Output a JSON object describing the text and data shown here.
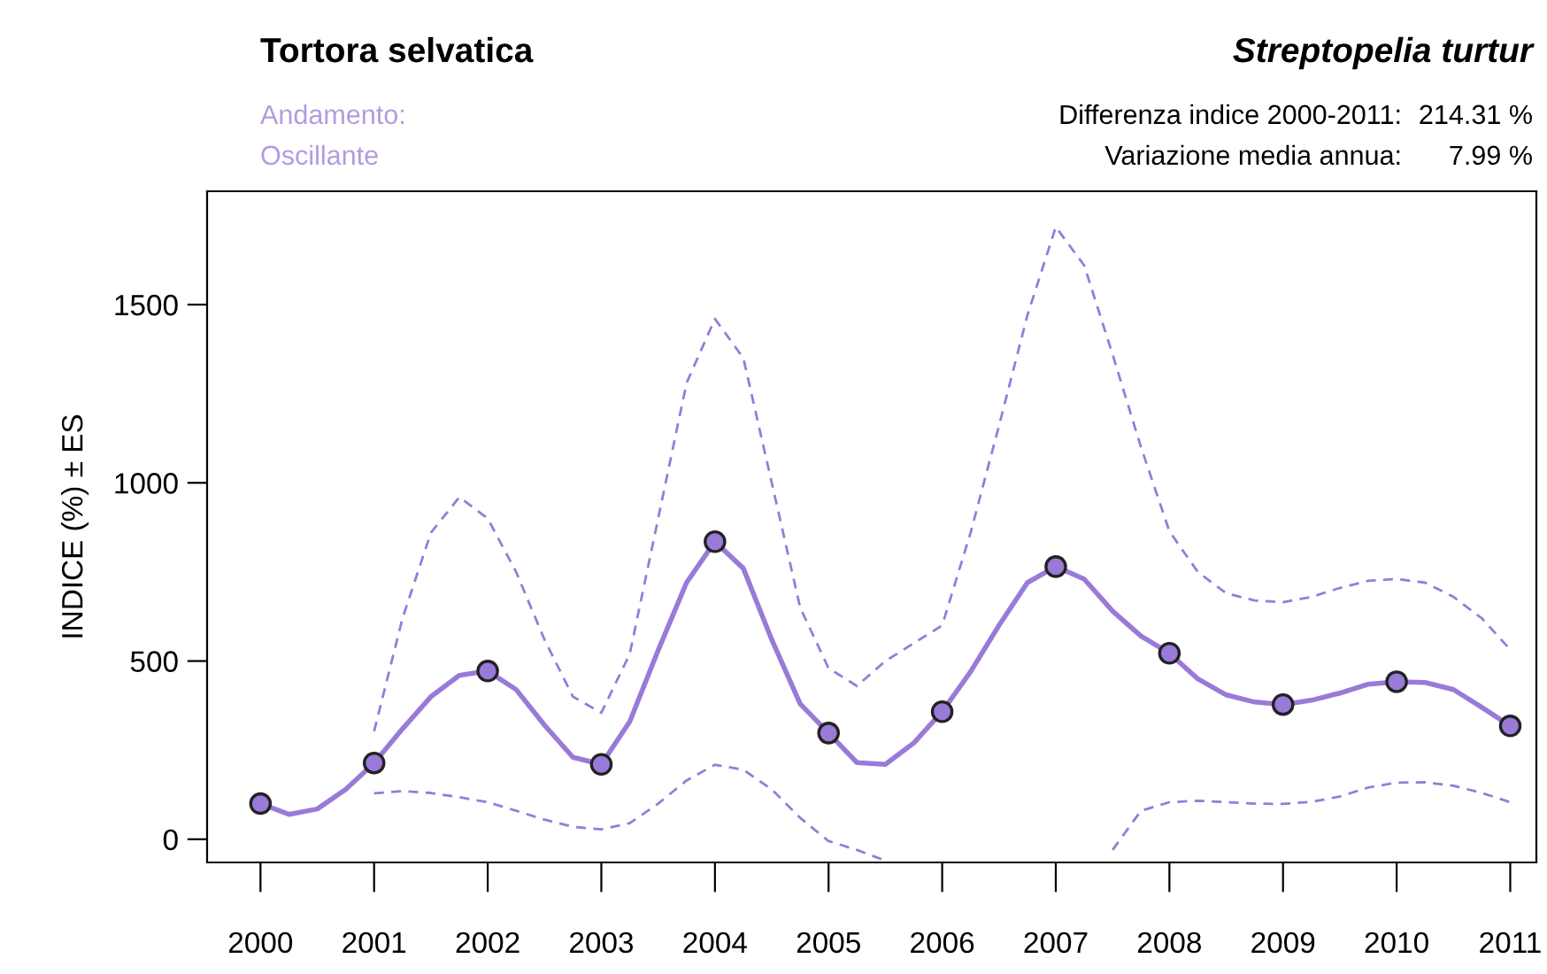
{
  "chart_data": {
    "type": "line",
    "title": "Tortora selvatica",
    "subtitle": "Streptopelia turtur",
    "ylabel": "INDICE (%) ± ES",
    "x": [
      2000,
      2001,
      2002,
      2003,
      2004,
      2005,
      2006,
      2007,
      2008,
      2009,
      2010,
      2011
    ],
    "series": [
      {
        "color": "#9a7ad8",
        "line_style": "solid",
        "x": [
          2000,
          2000.25,
          2000.5,
          2000.75,
          2001,
          2001.25,
          2001.5,
          2001.75,
          2002,
          2002.25,
          2002.5,
          2002.75,
          2003,
          2003.25,
          2003.5,
          2003.75,
          2004,
          2004.25,
          2004.5,
          2004.75,
          2005,
          2005.25,
          2005.5,
          2005.75,
          2006,
          2006.25,
          2006.5,
          2006.75,
          2007,
          2007.25,
          2007.5,
          2007.75,
          2008,
          2008.25,
          2008.5,
          2008.75,
          2009,
          2009.25,
          2009.5,
          2009.75,
          2010,
          2010.25,
          2010.5,
          2010.75,
          2011
        ],
        "values": [
          100,
          70,
          85,
          140,
          214,
          310,
          400,
          460,
          472,
          420,
          320,
          230,
          210,
          330,
          530,
          720,
          835,
          760,
          560,
          380,
          298,
          215,
          210,
          270,
          358,
          470,
          600,
          720,
          765,
          730,
          640,
          570,
          522,
          450,
          405,
          385,
          378,
          390,
          410,
          435,
          442,
          440,
          420,
          370,
          318
        ]
      },
      {
        "color": "#9a7ad8",
        "line_style": "dashed",
        "x": [
          2001,
          2001.25,
          2001.5,
          2001.75,
          2002,
          2002.25,
          2002.5,
          2002.75,
          2003,
          2003.25,
          2003.5,
          2003.75,
          2004,
          2004.25,
          2004.5,
          2004.75,
          2005,
          2005.25,
          2005.5,
          2005.75,
          2006,
          2006.25,
          2006.5,
          2006.75,
          2007,
          2007.25,
          2007.5,
          2007.75,
          2008,
          2008.25,
          2008.5,
          2008.75,
          2009,
          2009.25,
          2009.5,
          2009.75,
          2010,
          2010.25,
          2010.5,
          2010.75,
          2011
        ],
        "values": [
          303,
          620,
          860,
          960,
          900,
          750,
          560,
          400,
          355,
          520,
          900,
          1280,
          1460,
          1350,
          1000,
          650,
          480,
          430,
          500,
          550,
          600,
          860,
          1160,
          1470,
          1718,
          1610,
          1360,
          1100,
          864,
          750,
          690,
          670,
          665,
          680,
          705,
          725,
          730,
          720,
          680,
          620,
          532
        ]
      },
      {
        "color": "#9a7ad8",
        "line_style": "dashed",
        "x": [
          2001,
          2001.25,
          2001.5,
          2001.75,
          2002,
          2002.25,
          2002.5,
          2002.75,
          2003,
          2003.25,
          2003.5,
          2003.75,
          2004,
          2004.25,
          2004.5,
          2004.75,
          2005,
          2005.25,
          2005.5,
          2006.5,
          2007.5,
          2007.75,
          2008,
          2008.25,
          2008.5,
          2008.75,
          2009,
          2009.25,
          2009.5,
          2009.75,
          2010,
          2010.25,
          2010.5,
          2010.75,
          2011
        ],
        "values": [
          129,
          135,
          130,
          118,
          104,
          80,
          55,
          35,
          28,
          45,
          100,
          165,
          209,
          195,
          140,
          60,
          -5,
          -30,
          -60,
          null,
          -30,
          80,
          104,
          108,
          104,
          100,
          99,
          105,
          120,
          145,
          159,
          160,
          150,
          130,
          104
        ]
      },
      {
        "type": "scatter",
        "color": "#9a7ad8",
        "marker": "circle",
        "values": [
          100,
          214,
          472,
          210,
          835,
          298,
          358,
          765,
          522,
          378,
          442,
          318
        ]
      }
    ],
    "grid": false,
    "legend": false,
    "xlim": [
      1999.53,
      2011.23
    ],
    "xticks": [
      2000,
      2001,
      2002,
      2003,
      2004,
      2005,
      2006,
      2007,
      2008,
      2009,
      2010,
      2011
    ],
    "ylim": [
      -65,
      1818
    ],
    "yticks": [
      0,
      500,
      1000,
      1500
    ],
    "annotations": [
      "Andamento:",
      "Oscillante",
      "Differenza indice 2000-2011:",
      "214.31 %",
      "Variazione media annua:",
      "7.99 %"
    ]
  }
}
